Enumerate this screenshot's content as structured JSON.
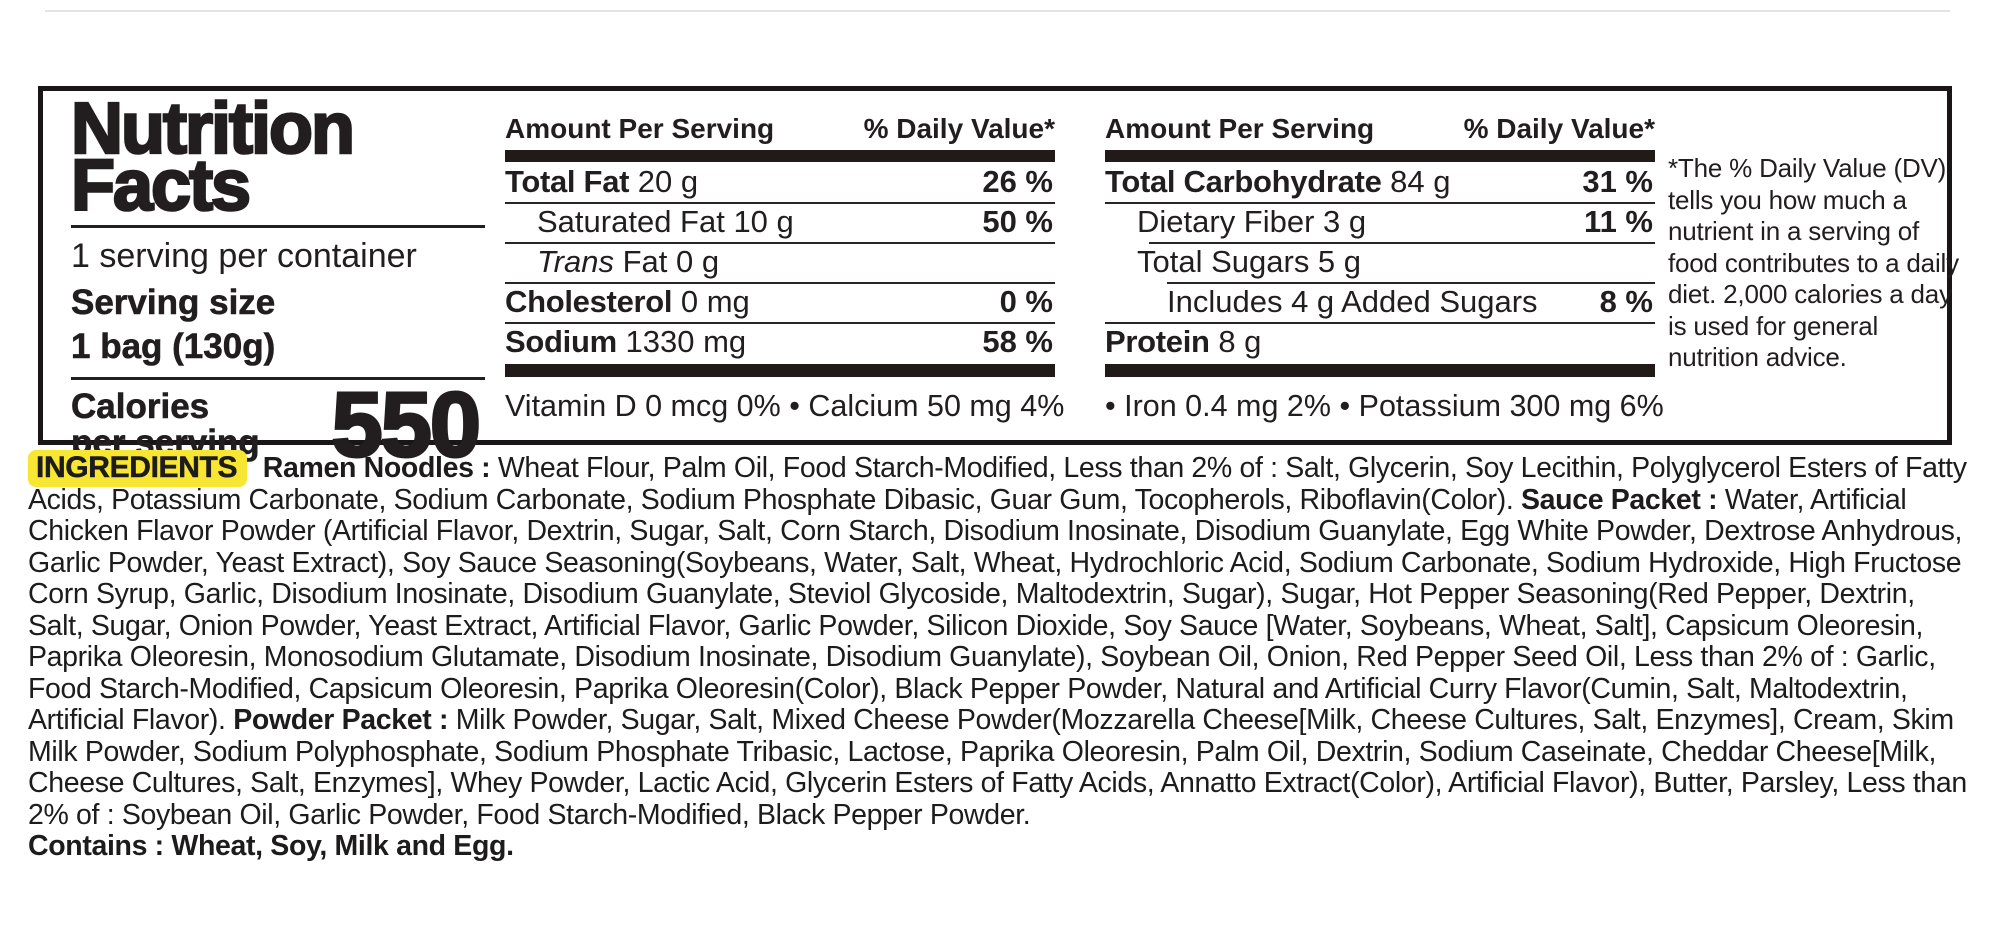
{
  "colors": {
    "highlight_yellow": "#f7e733",
    "text_black": "#221e1f"
  },
  "panel": {
    "title_line1": "Nutrition",
    "title_line2": "Facts",
    "servings_per_container": "1 serving per container",
    "serving_size_label": "Serving size",
    "serving_size_value": "1 bag (130g)",
    "calories_label_line1": "Calories",
    "calories_label_line2": "per serving",
    "calories_value": "550",
    "footnote": "*The % Daily Value (DV) tells you how much a nutrient in a serving of food contributes to a daily diet. 2,000 calories a day is used for general nutrition advice."
  },
  "columns": [
    {
      "header_left": "Amount Per Serving",
      "header_right": "% Daily Value*",
      "rows": [
        {
          "prefix": "Total Fat",
          "style": "bold",
          "rest": " 20 g",
          "dv": "26 %",
          "indent": 0,
          "rule": null
        },
        {
          "prefix": "",
          "style": "none",
          "rest": "Saturated Fat 10 g",
          "dv": "50 %",
          "indent": 32,
          "rule": 0
        },
        {
          "prefix": "Trans",
          "style": "italic",
          "rest": " Fat 0 g",
          "dv": "",
          "indent": 32,
          "rule": 0
        },
        {
          "prefix": "Cholesterol",
          "style": "bold",
          "rest": " 0 mg",
          "dv": "0 %",
          "indent": 0,
          "rule": 0
        },
        {
          "prefix": "Sodium",
          "style": "bold",
          "rest": " 1330 mg",
          "dv": "58 %",
          "indent": 0,
          "rule": 0
        }
      ],
      "micros": "Vitamin D 0 mcg 0%  • Calcium 50 mg 4%"
    },
    {
      "header_left": "Amount Per Serving",
      "header_right": "% Daily Value*",
      "rows": [
        {
          "prefix": "Total Carbohydrate",
          "style": "bold",
          "rest": " 84 g",
          "dv": "31 %",
          "indent": 0,
          "rule": null
        },
        {
          "prefix": "",
          "style": "none",
          "rest": "Dietary Fiber 3 g",
          "dv": "11 %",
          "indent": 32,
          "rule": 0
        },
        {
          "prefix": "",
          "style": "none",
          "rest": "Total Sugars 5 g",
          "dv": "",
          "indent": 32,
          "rule": 44
        },
        {
          "prefix": "",
          "style": "none",
          "rest": "Includes 4 g Added Sugars",
          "dv": "8 %",
          "indent": 62,
          "rule": 62
        },
        {
          "prefix": "Protein",
          "style": "bold",
          "rest": " 8 g",
          "dv": "",
          "indent": 0,
          "rule": 0
        }
      ],
      "micros": "• Iron 0.4 mg 2%  • Potassium 300 mg 6%"
    }
  ],
  "ingredients": {
    "segments": [
      {
        "text": "INGREDIENTS",
        "bold": true,
        "highlight": true
      },
      {
        "text": " Ramen Noodles : ",
        "bold": true
      },
      {
        "text": "Wheat Flour, Palm Oil, Food Starch-Modified, Less than 2% of : Salt, Glycerin, Soy Lecithin, Polyglycerol Esters of Fatty Acids, Potassium Carbonate, Sodium Carbonate, Sodium Phosphate Dibasic, Guar Gum, Tocopherols, Riboflavin(Color). "
      },
      {
        "text": "Sauce Packet : ",
        "bold": true
      },
      {
        "text": "Water, Artificial Chicken Flavor Powder (Artificial Flavor, Dextrin, Sugar, Salt, Corn Starch, Disodium Inosinate, Disodium Guanylate, Egg White Powder, Dextrose Anhydrous, Garlic Powder, Yeast Extract), Soy Sauce Seasoning(Soybeans, Water, Salt, Wheat, Hydrochloric Acid, Sodium Carbonate, Sodium Hydroxide, High Fructose Corn Syrup, Garlic, Disodium Inosinate, Disodium Guanylate, Steviol Glycoside, Maltodextrin, Sugar), Sugar, Hot Pepper Seasoning(Red Pepper, Dextrin, Salt, Sugar, Onion Powder, Yeast Extract, Artificial Flavor, Garlic Powder, Silicon Dioxide, Soy Sauce [Water, Soybeans, Wheat, Salt], Capsicum Oleoresin, Paprika Oleoresin, Monosodium Glutamate, Disodium Inosinate, Disodium Guanylate), Soybean Oil, Onion, Red Pepper Seed Oil, Less than 2% of : Garlic, Food Starch-Modified, Capsicum Oleoresin, Paprika Oleoresin(Color), Black Pepper Powder, Natural and Artificial Curry Flavor(Cumin, Salt, Maltodextrin, Artificial Flavor). "
      },
      {
        "text": "Powder Packet : ",
        "bold": true
      },
      {
        "text": "Milk Powder, Sugar, Salt, Mixed Cheese Powder(Mozzarella Cheese[Milk, Cheese Cultures, Salt, Enzymes], Cream, Skim Milk Powder, Sodium Polyphosphate, Sodium Phosphate Tribasic, Lactose, Paprika Oleoresin, Palm Oil, Dextrin, Sodium Caseinate, Cheddar Cheese[Milk, Cheese Cultures, Salt, Enzymes], Whey Powder, Lactic Acid, Glycerin Esters of Fatty Acids, Annatto Extract(Color), Artificial Flavor), Butter, Parsley, Less than 2% of : Soybean Oil, Garlic Powder, Food Starch-Modified, Black Pepper Powder."
      }
    ],
    "contains": "Contains : Wheat, Soy, Milk and Egg."
  }
}
